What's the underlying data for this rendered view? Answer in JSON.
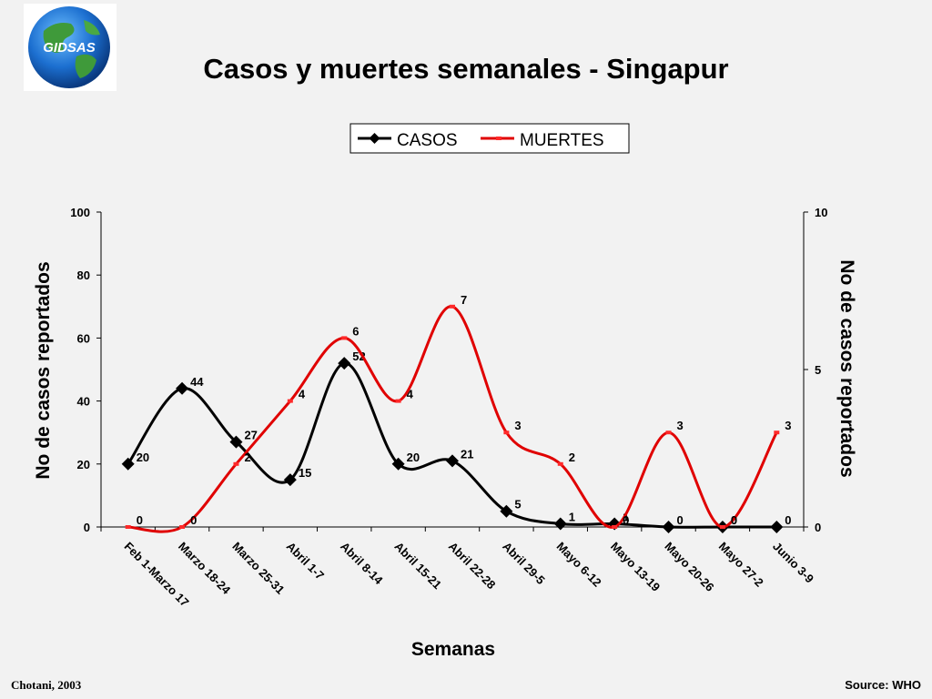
{
  "logo": {
    "text": "GIDSAS"
  },
  "slide": {
    "title": "Casos y muertes semanales - Singapur"
  },
  "footer": {
    "left": "Chotani, 2003",
    "right": "Source: WHO"
  },
  "chart_data": {
    "type": "line",
    "categories": [
      "Feb 1-Marzo 17",
      "Marzo 18-24",
      "Marzo 25-31",
      "Abril 1-7",
      "Abril 8-14",
      "Abril 15-21",
      "Abril 22-28",
      "Abril 29-5",
      "Mayo 6-12",
      "Mayo 13-19",
      "Mayo 20-26",
      "Mayo 27-2",
      "Junio 3-9"
    ],
    "series": [
      {
        "name": "CASOS",
        "axis": "left",
        "color": "#000000",
        "marker": "diamond",
        "values": [
          20,
          44,
          27,
          15,
          52,
          20,
          21,
          5,
          1,
          1,
          0,
          0,
          0
        ],
        "labels": [
          "20",
          "44",
          "27",
          "15",
          "52",
          "20",
          "21",
          "5",
          "1",
          "1",
          "0",
          "0",
          "0"
        ]
      },
      {
        "name": "MUERTES",
        "axis": "right",
        "color": "#e00000",
        "marker": "dash",
        "values": [
          0,
          0,
          2,
          4,
          6,
          4,
          7,
          3,
          2,
          0,
          3,
          0,
          3
        ],
        "labels": [
          "0",
          "0",
          "2",
          "4",
          "6",
          "4",
          "7",
          "3",
          "2",
          "0",
          "3",
          "0",
          "3"
        ]
      }
    ],
    "xlabel": "Semanas",
    "ylabel": "No de casos reportados",
    "y2label": "No de casos reportados",
    "ylim": [
      0,
      100
    ],
    "y2lim": [
      0,
      10
    ],
    "yticks": [
      "0",
      "20",
      "40",
      "60",
      "80",
      "100"
    ],
    "y2ticks": [
      "0",
      "5",
      "10"
    ],
    "legend": "top-center",
    "grid": false
  }
}
